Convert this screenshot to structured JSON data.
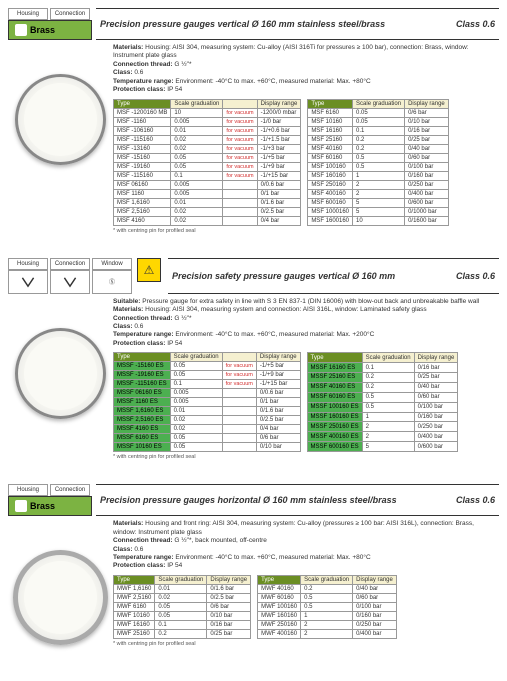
{
  "tags": {
    "housing": "Housing",
    "connection": "Connection",
    "window": "Window",
    "brass": "Brass"
  },
  "sec1": {
    "title": "Precision pressure gauges vertical Ø 160 mm stainless steel/brass",
    "class": "Class 0.6",
    "info": [
      [
        "Materials:",
        "Housing: AISI 304, measuring system: Cu-alloy (AISI 316Ti for pressures ≥ 100 bar), connection: Brass, window: Instrument plate glass"
      ],
      [
        "Connection thread:",
        "G ½\"*"
      ],
      [
        "Class:",
        "0.6"
      ],
      [
        "Temperature range:",
        "Environment: -40°C to max. +60°C, measured material: Max. +80°C"
      ],
      [
        "Protection class:",
        "IP 54"
      ]
    ],
    "headers": [
      "Type",
      "Scale graduation",
      "",
      "Display range"
    ],
    "t1": [
      [
        "MSF -1200160 MB",
        "10",
        "for vacuum",
        "-1200/0 mbar"
      ],
      [
        "MSF -1160",
        "0.005",
        "for vacuum",
        "-1/0 bar"
      ],
      [
        "MSF -106160",
        "0.01",
        "for vacuum",
        "-1/+0.6 bar"
      ],
      [
        "MSF -115160",
        "0.02",
        "for vacuum",
        "-1/+1.5 bar"
      ],
      [
        "MSF -13160",
        "0.02",
        "for vacuum",
        "-1/+3 bar"
      ],
      [
        "MSF -15160",
        "0.05",
        "for vacuum",
        "-1/+5 bar"
      ],
      [
        "MSF -19160",
        "0.05",
        "for vacuum",
        "-1/+9 bar"
      ],
      [
        "MSF -115160",
        "0.1",
        "for vacuum",
        "-1/+15 bar"
      ],
      [
        "MSF 06160",
        "0.005",
        "",
        "0/0.6 bar"
      ],
      [
        "MSF 1160",
        "0.005",
        "",
        "0/1 bar"
      ],
      [
        "MSF 1,6160",
        "0.01",
        "",
        "0/1.6 bar"
      ],
      [
        "MSF 2,5160",
        "0.02",
        "",
        "0/2.5 bar"
      ],
      [
        "MSF 4160",
        "0.02",
        "",
        "0/4 bar"
      ]
    ],
    "t2": [
      [
        "MSF 6160",
        "0.05",
        "0/6 bar"
      ],
      [
        "MSF 10160",
        "0.05",
        "0/10 bar"
      ],
      [
        "MSF 16160",
        "0.1",
        "0/16 bar"
      ],
      [
        "MSF 25160",
        "0.2",
        "0/25 bar"
      ],
      [
        "MSF 40160",
        "0.2",
        "0/40 bar"
      ],
      [
        "MSF 60160",
        "0.5",
        "0/60 bar"
      ],
      [
        "MSF 100160",
        "0.5",
        "0/100 bar"
      ],
      [
        "MSF 160160",
        "1",
        "0/160 bar"
      ],
      [
        "MSF 250160",
        "2",
        "0/250 bar"
      ],
      [
        "MSF 400160",
        "2",
        "0/400 bar"
      ],
      [
        "MSF 600160",
        "5",
        "0/600 bar"
      ],
      [
        "MSF 1000160",
        "5",
        "0/1000 bar"
      ],
      [
        "MSF 1600160",
        "10",
        "0/1600 bar"
      ]
    ],
    "footnote": "* with centring pin for profiled seal"
  },
  "sec2": {
    "title": "Precision safety pressure gauges vertical Ø 160 mm",
    "class": "Class 0.6",
    "info": [
      [
        "Suitable:",
        "Pressure gauge for extra safety in line with S 3 EN 837-1 (DIN 16006) with blow-out back and unbreakable baffle wall"
      ],
      [
        "Materials:",
        "Housing: AISI 304, measuring system and connection: AISI 316L, window: Laminated safety glass"
      ],
      [
        "Connection thread:",
        "G ½\"*"
      ],
      [
        "Class:",
        "0.6"
      ],
      [
        "Temperature range:",
        "Environment: -40°C to max. +60°C, measured material: Max. +200°C"
      ],
      [
        "Protection class:",
        "IP 54"
      ]
    ],
    "headers": [
      "Type",
      "Scale graduation",
      "",
      "Display range"
    ],
    "t1": [
      [
        "MSSF -15160 ES",
        "0.05",
        "for vacuum",
        "-1/+5 bar",
        true
      ],
      [
        "MSSF -19160 ES",
        "0.05",
        "for vacuum",
        "-1/+9 bar",
        true
      ],
      [
        "MSSF -115160 ES",
        "0.1",
        "for vacuum",
        "-1/+15 bar",
        true
      ],
      [
        "MSSF 06160 ES",
        "0.005",
        "",
        "0/0.6 bar",
        true
      ],
      [
        "MSSF 1160 ES",
        "0.005",
        "",
        "0/1 bar",
        true
      ],
      [
        "MSSF 1,6160 ES",
        "0.01",
        "",
        "0/1.6 bar",
        true
      ],
      [
        "MSSF 2,5160 ES",
        "0.02",
        "",
        "0/2.5 bar",
        true
      ],
      [
        "MSSF 4160 ES",
        "0.02",
        "",
        "0/4 bar",
        true
      ],
      [
        "MSSF 6160 ES",
        "0.05",
        "",
        "0/6 bar",
        true
      ],
      [
        "MSSF 10160 ES",
        "0.05",
        "",
        "0/10 bar",
        true
      ]
    ],
    "t2": [
      [
        "MSSF 16160 ES",
        "0.1",
        "0/16 bar",
        true
      ],
      [
        "MSSF 25160 ES",
        "0.2",
        "0/25 bar",
        true
      ],
      [
        "MSSF 40160 ES",
        "0.2",
        "0/40 bar",
        true
      ],
      [
        "MSSF 60160 ES",
        "0.5",
        "0/60 bar",
        true
      ],
      [
        "MSSF 100160 ES",
        "0.5",
        "0/100 bar",
        true
      ],
      [
        "MSSF 160160 ES",
        "1",
        "0/160 bar",
        true
      ],
      [
        "MSSF 250160 ES",
        "2",
        "0/250 bar",
        true
      ],
      [
        "MSSF 400160 ES",
        "2",
        "0/400 bar",
        true
      ],
      [
        "MSSF 600160 ES",
        "5",
        "0/600 bar",
        true
      ]
    ],
    "footnote": "* with centring pin for profiled seal"
  },
  "sec3": {
    "title": "Precision pressure gauges horizontal Ø 160 mm stainless steel/brass",
    "class": "Class 0.6",
    "info": [
      [
        "Materials:",
        "Housing and front ring: AISI 304, measuring system: Cu-alloy (pressures ≥ 100 bar: AISI 316L), connection: Brass, window: Instrument plate glass"
      ],
      [
        "Connection thread:",
        "G ½\"*, back mounted, off-centre"
      ],
      [
        "Class:",
        "0.6"
      ],
      [
        "Temperature range:",
        "Environment: -40°C to max. +60°C, measured material: Max. +80°C"
      ],
      [
        "Protection class:",
        "IP 54"
      ]
    ],
    "headers": [
      "Type",
      "Scale graduation",
      "Display range"
    ],
    "t1": [
      [
        "MWF 1,6160",
        "0.01",
        "0/1.6 bar"
      ],
      [
        "MWF 2,5160",
        "0.02",
        "0/2.5 bar"
      ],
      [
        "MWF 6160",
        "0.05",
        "0/6 bar"
      ],
      [
        "MWF 10160",
        "0.05",
        "0/10 bar"
      ],
      [
        "MWF 16160",
        "0.1",
        "0/16 bar"
      ],
      [
        "MWF 25160",
        "0.2",
        "0/25 bar"
      ]
    ],
    "t2": [
      [
        "MWF 40160",
        "0.2",
        "0/40 bar"
      ],
      [
        "MWF 60160",
        "0.5",
        "0/60 bar"
      ],
      [
        "MWF 100160",
        "0.5",
        "0/100 bar"
      ],
      [
        "MWF 160160",
        "1",
        "0/160 bar"
      ],
      [
        "MWF 250160",
        "2",
        "0/250 bar"
      ],
      [
        "MWF 400160",
        "2",
        "0/400 bar"
      ]
    ],
    "footnote": "* with centring pin for profiled seal"
  }
}
